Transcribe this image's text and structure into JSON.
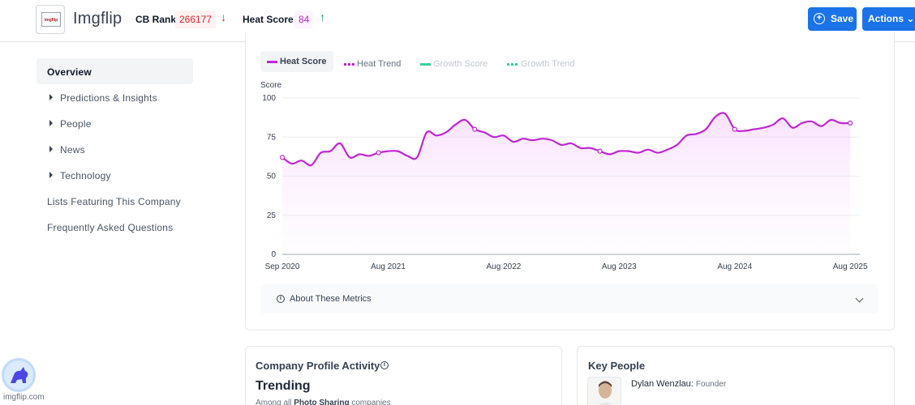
{
  "header": {
    "logo_text": "imgflip",
    "company_name": "Imgflip",
    "cb_rank_label": "CB Rank",
    "cb_rank_value": "266177",
    "cb_rank_arrow": "↓",
    "heat_score_label": "Heat Score",
    "heat_score_value": "84",
    "heat_score_arrow": "↑",
    "save_label": "Save",
    "actions_label": "Actions ⌄",
    "colors": {
      "button": "#1a73e8",
      "rank": "#dc2626",
      "heat": "#c026d3",
      "up": "#059669"
    }
  },
  "sidebar": {
    "items": [
      {
        "label": "Overview",
        "active": true,
        "expandable": false
      },
      {
        "label": "Predictions & Insights",
        "active": false,
        "expandable": true
      },
      {
        "label": "People",
        "active": false,
        "expandable": true
      },
      {
        "label": "News",
        "active": false,
        "expandable": true
      },
      {
        "label": "Technology",
        "active": false,
        "expandable": true
      },
      {
        "label": "Lists Featuring This Company",
        "active": false,
        "expandable": false
      },
      {
        "label": "Frequently Asked Questions",
        "active": false,
        "expandable": false
      }
    ]
  },
  "chart": {
    "legend": [
      {
        "label": "Heat Score",
        "color": "#c026d3",
        "style": "solid",
        "active": true
      },
      {
        "label": "Heat Trend",
        "color": "#c026d3",
        "style": "dashed",
        "active": false
      },
      {
        "label": "Growth Score",
        "color": "#34d399",
        "style": "solid",
        "active": false
      },
      {
        "label": "Growth Trend",
        "color": "#34d399",
        "style": "dashed",
        "active": false
      }
    ],
    "about_label": "About These Metrics"
  },
  "chart_data": {
    "type": "area",
    "ylabel": "Score",
    "ylim": [
      0,
      100
    ],
    "yticks": [
      0,
      25,
      50,
      75,
      100
    ],
    "xticks": [
      "Sep 2020",
      "Aug 2021",
      "Aug 2022",
      "Aug 2023",
      "Aug 2024",
      "Aug 2025"
    ],
    "xlim": [
      "2020-09",
      "2025-09"
    ],
    "grid": true,
    "series": [
      {
        "name": "Heat Score",
        "color": "#c026d3",
        "points": [
          [
            "2020-09",
            62
          ],
          [
            "2020-10",
            58
          ],
          [
            "2020-11",
            60
          ],
          [
            "2020-12",
            57
          ],
          [
            "2021-01",
            65
          ],
          [
            "2021-02",
            66
          ],
          [
            "2021-03",
            71
          ],
          [
            "2021-04",
            62
          ],
          [
            "2021-05",
            64
          ],
          [
            "2021-06",
            63
          ],
          [
            "2021-07",
            65
          ],
          [
            "2021-08",
            66
          ],
          [
            "2021-09",
            66
          ],
          [
            "2021-10",
            63
          ],
          [
            "2021-11",
            62
          ],
          [
            "2021-12",
            78
          ],
          [
            "2022-01",
            76
          ],
          [
            "2022-02",
            78
          ],
          [
            "2022-03",
            83
          ],
          [
            "2022-04",
            86
          ],
          [
            "2022-05",
            80
          ],
          [
            "2022-06",
            78
          ],
          [
            "2022-07",
            75
          ],
          [
            "2022-08",
            76
          ],
          [
            "2022-09",
            72
          ],
          [
            "2022-10",
            74
          ],
          [
            "2022-11",
            73
          ],
          [
            "2022-12",
            74
          ],
          [
            "2023-01",
            73
          ],
          [
            "2023-02",
            70
          ],
          [
            "2023-03",
            71
          ],
          [
            "2023-04",
            68
          ],
          [
            "2023-05",
            68
          ],
          [
            "2023-06",
            66
          ],
          [
            "2023-07",
            64
          ],
          [
            "2023-08",
            66
          ],
          [
            "2023-09",
            66
          ],
          [
            "2023-10",
            65
          ],
          [
            "2023-11",
            67
          ],
          [
            "2023-12",
            65
          ],
          [
            "2024-01",
            67
          ],
          [
            "2024-02",
            70
          ],
          [
            "2024-03",
            76
          ],
          [
            "2024-04",
            77
          ],
          [
            "2024-05",
            80
          ],
          [
            "2024-06",
            88
          ],
          [
            "2024-07",
            90
          ],
          [
            "2024-08",
            80
          ],
          [
            "2024-09",
            79
          ],
          [
            "2024-10",
            80
          ],
          [
            "2024-11",
            81
          ],
          [
            "2024-12",
            83
          ],
          [
            "2025-01",
            87
          ],
          [
            "2025-02",
            81
          ],
          [
            "2025-03",
            84
          ],
          [
            "2025-04",
            85
          ],
          [
            "2025-05",
            82
          ],
          [
            "2025-06",
            86
          ],
          [
            "2025-07",
            84
          ],
          [
            "2025-08",
            84
          ]
        ],
        "markers": [
          "2020-09",
          "2021-07",
          "2022-05",
          "2023-06",
          "2024-08",
          "2025-08"
        ]
      }
    ]
  },
  "profile_activity": {
    "title": "Company Profile Activity",
    "status": "Trending",
    "among_prefix": "Among all ",
    "among_category": "Photo Sharing",
    "among_suffix": " companies"
  },
  "key_people": {
    "title": "Key People",
    "people": [
      {
        "name": "Dylan Wenzlau:",
        "role": "Founder"
      }
    ]
  },
  "watermark": {
    "text": "imgflip.com"
  }
}
